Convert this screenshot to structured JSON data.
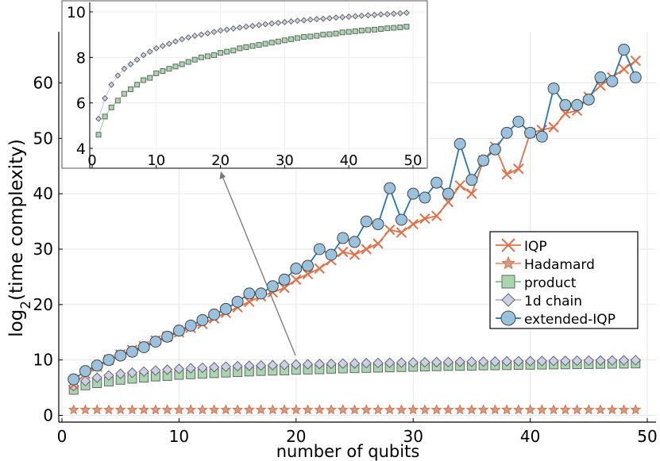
{
  "chart_data": {
    "type": "scatter",
    "title": "",
    "xlabel": "number of qubits",
    "ylabel_main": "log",
    "ylabel_sub": "2",
    "ylabel_rest": "(time complexity)",
    "xlim": [
      0,
      50
    ],
    "ylim": [
      -1,
      68
    ],
    "xticks": [
      0,
      10,
      20,
      30,
      40,
      50
    ],
    "yticks": [
      0,
      10,
      20,
      30,
      40,
      50,
      60
    ],
    "grid": true,
    "legend_placement": "right",
    "x": [
      1,
      2,
      3,
      4,
      5,
      6,
      7,
      8,
      9,
      10,
      11,
      12,
      13,
      14,
      15,
      16,
      17,
      18,
      19,
      20,
      21,
      22,
      23,
      24,
      25,
      26,
      27,
      28,
      29,
      30,
      31,
      32,
      33,
      34,
      35,
      36,
      37,
      38,
      39,
      40,
      41,
      42,
      43,
      44,
      45,
      46,
      47,
      48,
      49
    ],
    "series": [
      {
        "name": "IQP",
        "marker": "x",
        "color": "#e26f46",
        "values": [
          5.5,
          7.5,
          8.8,
          10.0,
          11.0,
          11.8,
          12.5,
          13.5,
          14.2,
          15.0,
          15.8,
          16.5,
          17.5,
          18.5,
          19.5,
          20.5,
          21.5,
          22.2,
          23.0,
          24.5,
          25.5,
          26.5,
          28.0,
          29.5,
          29.0,
          30.0,
          31.0,
          33.5,
          33.0,
          34.5,
          35.5,
          36.0,
          38.5,
          41.5,
          40.0,
          46.0,
          48.5,
          43.5,
          44.5,
          51.0,
          51.5,
          52.0,
          54.5,
          55.0,
          57.5,
          59.5,
          61.0,
          62.5,
          64.0
        ]
      },
      {
        "name": "Hadamard",
        "marker": "star",
        "color": "#e26f46",
        "values": [
          1,
          1,
          1,
          1,
          1,
          1,
          1,
          1,
          1,
          1,
          1,
          1,
          1,
          1,
          1,
          1,
          1,
          1,
          1,
          1,
          1,
          1,
          1,
          1,
          1,
          1,
          1,
          1,
          1,
          1,
          1,
          1,
          1,
          1,
          1,
          1,
          1,
          1,
          1,
          1,
          1,
          1,
          1,
          1,
          1,
          1,
          1,
          1,
          1
        ]
      },
      {
        "name": "product",
        "marker": "square",
        "color": "#3da44d",
        "values": [
          4.6,
          5.4,
          5.8,
          6.1,
          6.4,
          6.6,
          6.8,
          7.0,
          7.1,
          7.3,
          7.4,
          7.5,
          7.6,
          7.7,
          7.8,
          7.9,
          8.0,
          8.05,
          8.1,
          8.2,
          8.25,
          8.3,
          8.4,
          8.45,
          8.5,
          8.55,
          8.6,
          8.65,
          8.7,
          8.75,
          8.8,
          8.85,
          8.9,
          8.92,
          8.95,
          9.0,
          9.02,
          9.05,
          9.1,
          9.12,
          9.15,
          9.18,
          9.2,
          9.22,
          9.25,
          9.28,
          9.3,
          9.32,
          9.35
        ]
      },
      {
        "name": "1d chain",
        "marker": "diamond",
        "color": "#8e97c8",
        "values": [
          5.3,
          6.2,
          6.8,
          7.2,
          7.5,
          7.7,
          7.9,
          8.1,
          8.25,
          8.4,
          8.5,
          8.6,
          8.7,
          8.8,
          8.88,
          8.95,
          9.0,
          9.06,
          9.12,
          9.18,
          9.22,
          9.27,
          9.31,
          9.35,
          9.38,
          9.42,
          9.46,
          9.49,
          9.52,
          9.55,
          9.58,
          9.61,
          9.63,
          9.66,
          9.68,
          9.7,
          9.72,
          9.75,
          9.77,
          9.79,
          9.81,
          9.83,
          9.85,
          9.87,
          9.89,
          9.9,
          9.92,
          9.94,
          9.96
        ]
      },
      {
        "name": "extended-IQP",
        "marker": "circle",
        "color": "#1f77b4",
        "values": [
          6.5,
          8.0,
          9.0,
          10.0,
          10.8,
          11.5,
          12.3,
          13.3,
          14.2,
          15.3,
          16.2,
          17.2,
          18.2,
          19.2,
          20.5,
          22.0,
          22.0,
          23.3,
          24.5,
          26.5,
          27.0,
          30.0,
          29.0,
          32.0,
          31.3,
          35.0,
          34.5,
          41.0,
          35.3,
          40.0,
          39.3,
          42.0,
          40.0,
          49.0,
          42.5,
          46.0,
          48.0,
          51.0,
          53.0,
          51.0,
          50.3,
          59.0,
          56.0,
          56.0,
          57.0,
          61.0,
          60.3,
          66.0,
          61.0
        ]
      }
    ],
    "inset": {
      "xlim": [
        0,
        50
      ],
      "ylim": [
        4,
        10.2
      ],
      "xticks": [
        0,
        10,
        20,
        30,
        40,
        50
      ],
      "yticks": [
        4,
        6,
        8,
        10
      ],
      "series_shown": [
        "product",
        "1d chain"
      ]
    }
  }
}
